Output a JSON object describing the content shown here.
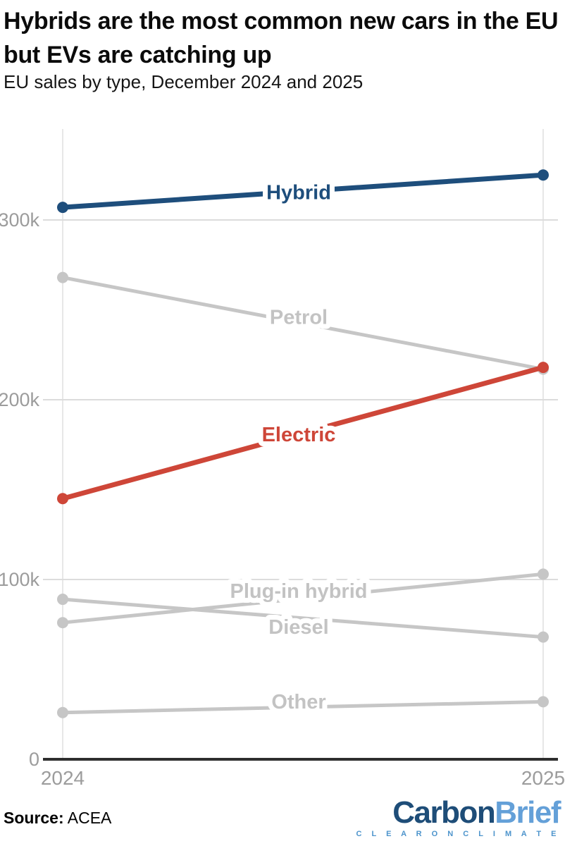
{
  "header": {
    "title": "Hybrids are the most common new cars in the EU but EVs are catching up",
    "subtitle": "EU sales by type, December 2024 and 2025"
  },
  "footer": {
    "source_label": "Source:",
    "source_value": "ACEA",
    "logo": {
      "part1": "Carbon",
      "part2": "Brief",
      "tagline": "C L E A R   O N   C L I M A T E"
    }
  },
  "colors": {
    "hybrid_blue": "#1e4e7c",
    "electric_red": "#ce4638",
    "muted_line_gray": "#c6c6c6",
    "muted_label_gray": "#c3c3c3",
    "axis_text_gray": "#9c9c9c",
    "gridline_gray": "#dcdcdc",
    "vertical_guide_gray": "#e7e7e7",
    "axis_line_dark": "#2e2e2e",
    "background": "#ffffff"
  },
  "chart_data": {
    "type": "line",
    "variant": "slopegraph",
    "title": "Hybrids are the most common new cars in the EU but EVs are catching up",
    "subtitle": "EU sales by type, December 2024 and 2025",
    "xlabel": "",
    "ylabel": "",
    "x_categories": [
      "2024",
      "2025"
    ],
    "ylim": [
      0,
      350000
    ],
    "grid": true,
    "legend_position": "inline-labels",
    "yticks": [
      {
        "value": 0,
        "label": "0"
      },
      {
        "value": 100000,
        "label": "100k"
      },
      {
        "value": 200000,
        "label": "200k"
      },
      {
        "value": 300000,
        "label": "300k"
      }
    ],
    "series": [
      {
        "name": "Petrol",
        "values": [
          268000,
          217000
        ],
        "color_key": "muted",
        "label_value": 246000
      },
      {
        "name": "Plug-in hybrid",
        "values": [
          76000,
          103000
        ],
        "color_key": "muted",
        "label_value": 93700
      },
      {
        "name": "Diesel",
        "values": [
          89000,
          68000
        ],
        "color_key": "muted",
        "label_value": 73700
      },
      {
        "name": "Other",
        "values": [
          26000,
          32000
        ],
        "color_key": "muted",
        "label_value": 32200
      },
      {
        "name": "Hybrid",
        "values": [
          307000,
          325000
        ],
        "color_key": "hybrid",
        "label_value": 315500
      },
      {
        "name": "Electric",
        "values": [
          145000,
          218000
        ],
        "color_key": "electric",
        "label_value": 180800
      }
    ],
    "source": "ACEA"
  }
}
